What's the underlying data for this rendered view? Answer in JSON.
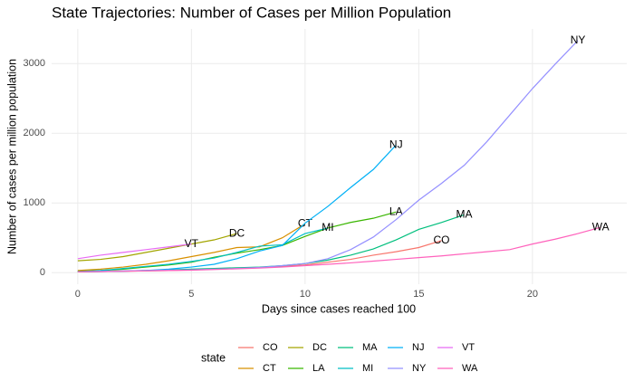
{
  "chart_data": {
    "type": "line",
    "title": "State Trajectories: Number of Cases per Million Population",
    "x_label": "Days since cases reached 100",
    "y_label": "Number of cases per million population",
    "legend_title": "state",
    "xlim": [
      -1.15,
      24.15
    ],
    "xticks": [
      0,
      5,
      10,
      15,
      20
    ],
    "ylim": [
      -166,
      3496
    ],
    "yticks": [
      0,
      1000,
      2000,
      3000
    ],
    "grid": true,
    "series": [
      {
        "name": "CO",
        "color": "#F8766D",
        "x": [
          0,
          1,
          2,
          3,
          4,
          5,
          6,
          7,
          8,
          9,
          10,
          11,
          12,
          13,
          14,
          15,
          16
        ],
        "values": [
          10,
          15,
          20,
          25,
          30,
          40,
          50,
          60,
          70,
          90,
          110,
          150,
          190,
          250,
          300,
          360,
          460
        ]
      },
      {
        "name": "CT",
        "color": "#D89000",
        "x": [
          0,
          1,
          2,
          3,
          4,
          5,
          6,
          7,
          8,
          9,
          10
        ],
        "values": [
          30,
          50,
          80,
          120,
          170,
          230,
          290,
          360,
          370,
          500,
          700
        ]
      },
      {
        "name": "DC",
        "color": "#A3A500",
        "x": [
          0,
          1,
          2,
          3,
          4,
          5,
          6,
          7
        ],
        "values": [
          170,
          190,
          230,
          290,
          350,
          410,
          470,
          560
        ]
      },
      {
        "name": "LA",
        "color": "#39B600",
        "x": [
          0,
          1,
          2,
          3,
          4,
          5,
          6,
          7,
          8,
          9,
          10,
          11,
          12,
          13,
          14
        ],
        "values": [
          20,
          30,
          50,
          80,
          110,
          150,
          220,
          280,
          330,
          390,
          520,
          640,
          720,
          780,
          870
        ]
      },
      {
        "name": "MA",
        "color": "#00BF7D",
        "x": [
          0,
          1,
          2,
          3,
          4,
          5,
          6,
          7,
          8,
          9,
          10,
          11,
          12,
          13,
          14,
          15,
          16,
          17
        ],
        "values": [
          15,
          20,
          25,
          30,
          40,
          50,
          60,
          70,
          80,
          100,
          130,
          180,
          250,
          340,
          470,
          620,
          720,
          830
        ]
      },
      {
        "name": "MI",
        "color": "#00BFC4",
        "x": [
          0,
          1,
          2,
          3,
          4,
          5,
          6,
          7,
          8,
          9,
          10,
          11
        ],
        "values": [
          10,
          30,
          60,
          90,
          120,
          160,
          210,
          290,
          380,
          400,
          560,
          640
        ]
      },
      {
        "name": "NJ",
        "color": "#00B0F6",
        "x": [
          0,
          1,
          2,
          3,
          4,
          5,
          6,
          7,
          8,
          9,
          10,
          11,
          12,
          13,
          14
        ],
        "values": [
          10,
          15,
          20,
          30,
          50,
          80,
          120,
          200,
          310,
          390,
          710,
          950,
          1220,
          1480,
          1830
        ]
      },
      {
        "name": "NY",
        "color": "#9590FF",
        "x": [
          0,
          1,
          2,
          3,
          4,
          5,
          6,
          7,
          8,
          9,
          10,
          11,
          12,
          13,
          14,
          15,
          16,
          17,
          18,
          19,
          20,
          21,
          22
        ],
        "values": [
          15,
          20,
          25,
          30,
          35,
          40,
          50,
          60,
          75,
          100,
          130,
          200,
          330,
          510,
          760,
          1040,
          1280,
          1540,
          1880,
          2260,
          2640,
          2990,
          3330
        ]
      },
      {
        "name": "VT",
        "color": "#E76BF3",
        "x": [
          0,
          1,
          2,
          3,
          4,
          5
        ],
        "values": [
          200,
          250,
          290,
          330,
          370,
          410
        ]
      },
      {
        "name": "WA",
        "color": "#FF62BC",
        "x": [
          0,
          1,
          2,
          3,
          4,
          5,
          6,
          7,
          8,
          9,
          10,
          11,
          12,
          13,
          14,
          15,
          16,
          17,
          18,
          19,
          20,
          21,
          22,
          23
        ],
        "values": [
          10,
          15,
          20,
          25,
          30,
          35,
          45,
          55,
          65,
          80,
          100,
          120,
          140,
          165,
          190,
          215,
          240,
          270,
          300,
          330,
          410,
          480,
          560,
          650
        ]
      }
    ]
  }
}
